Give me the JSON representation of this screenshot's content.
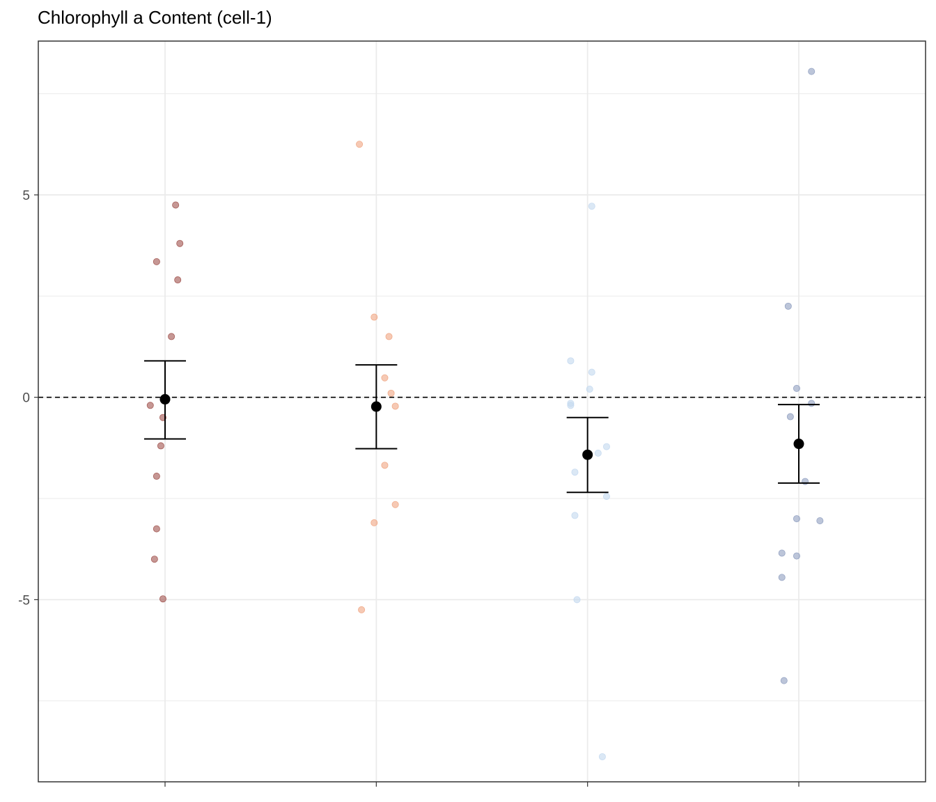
{
  "chart_data": {
    "type": "scatter",
    "title": "Chlorophyll a Content (cell-1)",
    "xlabel": "",
    "ylabel": "",
    "categories": [
      "",
      "",
      "",
      ""
    ],
    "ylim": [
      -9.5,
      8.8
    ],
    "y_ticks": [
      -5,
      0,
      5
    ],
    "y_tick_labels": [
      "-5",
      "0",
      "5"
    ],
    "grid": true,
    "reference_line": {
      "y": 0,
      "style": "dashed"
    },
    "groups": [
      {
        "color": "#a0524d",
        "points": [
          {
            "x": 1.05,
            "y": 4.75
          },
          {
            "x": 1.07,
            "y": 3.8
          },
          {
            "x": 0.96,
            "y": 3.35
          },
          {
            "x": 1.06,
            "y": 2.9
          },
          {
            "x": 1.03,
            "y": 1.5
          },
          {
            "x": 0.93,
            "y": -0.2
          },
          {
            "x": 0.99,
            "y": -0.5
          },
          {
            "x": 0.98,
            "y": -1.2
          },
          {
            "x": 0.96,
            "y": -1.95
          },
          {
            "x": 0.96,
            "y": -3.25
          },
          {
            "x": 0.95,
            "y": -4.0
          },
          {
            "x": 0.99,
            "y": -4.98
          }
        ],
        "mean": -0.05,
        "lower": -1.03,
        "upper": 0.9
      },
      {
        "color": "#f0a582",
        "points": [
          {
            "x": 1.92,
            "y": 6.25
          },
          {
            "x": 1.99,
            "y": 1.98
          },
          {
            "x": 2.06,
            "y": 1.5
          },
          {
            "x": 2.04,
            "y": 0.48
          },
          {
            "x": 2.07,
            "y": 0.1
          },
          {
            "x": 2.09,
            "y": -0.22
          },
          {
            "x": 2.04,
            "y": -1.68
          },
          {
            "x": 2.09,
            "y": -2.65
          },
          {
            "x": 1.99,
            "y": -3.1
          },
          {
            "x": 1.93,
            "y": -5.25
          }
        ],
        "mean": -0.23,
        "lower": -1.27,
        "upper": 0.8
      },
      {
        "color": "#c3d8ef",
        "points": [
          {
            "x": 3.02,
            "y": 4.72
          },
          {
            "x": 2.92,
            "y": 0.9
          },
          {
            "x": 3.02,
            "y": 0.62
          },
          {
            "x": 3.01,
            "y": 0.2
          },
          {
            "x": 2.92,
            "y": -0.15
          },
          {
            "x": 2.92,
            "y": -0.2
          },
          {
            "x": 3.09,
            "y": -1.22
          },
          {
            "x": 3.05,
            "y": -1.38
          },
          {
            "x": 2.94,
            "y": -1.85
          },
          {
            "x": 3.09,
            "y": -2.45
          },
          {
            "x": 2.94,
            "y": -2.92
          },
          {
            "x": 2.95,
            "y": -5.0
          },
          {
            "x": 3.07,
            "y": -8.88
          }
        ],
        "mean": -1.42,
        "lower": -2.35,
        "upper": -0.5
      },
      {
        "color": "#8f9ec0",
        "points": [
          {
            "x": 4.06,
            "y": 8.05
          },
          {
            "x": 3.95,
            "y": 2.25
          },
          {
            "x": 3.99,
            "y": 0.22
          },
          {
            "x": 4.06,
            "y": -0.15
          },
          {
            "x": 3.96,
            "y": -0.48
          },
          {
            "x": 4.03,
            "y": -2.08
          },
          {
            "x": 3.99,
            "y": -3.0
          },
          {
            "x": 4.1,
            "y": -3.05
          },
          {
            "x": 3.92,
            "y": -3.85
          },
          {
            "x": 3.99,
            "y": -3.92
          },
          {
            "x": 3.92,
            "y": -4.45
          },
          {
            "x": 3.93,
            "y": -7.0
          }
        ],
        "mean": -1.15,
        "lower": -2.12,
        "upper": -0.18
      }
    ]
  }
}
